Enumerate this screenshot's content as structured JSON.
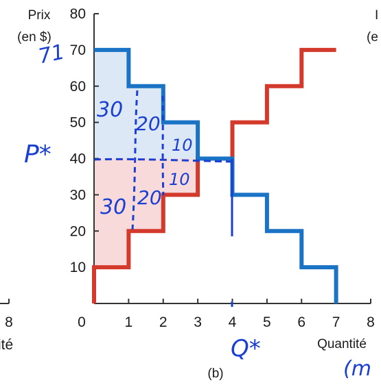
{
  "chart_data": {
    "type": "line",
    "panel_label": "(b)",
    "ylabel_line1": "Prix",
    "ylabel_line2": "(en $)",
    "xlabel": "Quantité",
    "xlim": [
      0,
      8
    ],
    "ylim": [
      0,
      80
    ],
    "xticks": [
      "0",
      "1",
      "2",
      "3",
      "4",
      "5",
      "6",
      "7",
      "8"
    ],
    "yticks": [
      "10",
      "20",
      "30",
      "40",
      "50",
      "60",
      "70",
      "80"
    ],
    "series": [
      {
        "role": "demand",
        "color": "#1a73c4",
        "step_points": [
          [
            0,
            70
          ],
          [
            1,
            70
          ],
          [
            1,
            60
          ],
          [
            2,
            60
          ],
          [
            2,
            50
          ],
          [
            3,
            50
          ],
          [
            3,
            40
          ],
          [
            4,
            40
          ],
          [
            4,
            30
          ],
          [
            5,
            30
          ],
          [
            5,
            20
          ],
          [
            6,
            20
          ],
          [
            6,
            10
          ],
          [
            7,
            10
          ],
          [
            7,
            0
          ]
        ]
      },
      {
        "role": "supply",
        "color": "#d33a2c",
        "step_points": [
          [
            0,
            0
          ],
          [
            0,
            10
          ],
          [
            1,
            10
          ],
          [
            1,
            20
          ],
          [
            2,
            20
          ],
          [
            2,
            30
          ],
          [
            3,
            30
          ],
          [
            3,
            40
          ],
          [
            4,
            40
          ],
          [
            4,
            50
          ],
          [
            5,
            50
          ],
          [
            5,
            60
          ],
          [
            6,
            60
          ],
          [
            6,
            70
          ],
          [
            7,
            70
          ]
        ]
      }
    ],
    "consumer_surplus_region": {
      "color": "#dce8f5",
      "points": [
        [
          0,
          40
        ],
        [
          0,
          70
        ],
        [
          1,
          70
        ],
        [
          1,
          60
        ],
        [
          2,
          60
        ],
        [
          2,
          50
        ],
        [
          3,
          50
        ],
        [
          3,
          40
        ]
      ]
    },
    "producer_surplus_region": {
      "color": "#f8dada",
      "points": [
        [
          0,
          40
        ],
        [
          0,
          10
        ],
        [
          1,
          10
        ],
        [
          1,
          20
        ],
        [
          2,
          20
        ],
        [
          2,
          30
        ],
        [
          3,
          30
        ],
        [
          3,
          40
        ]
      ]
    },
    "equilibrium_price": 40,
    "equilibrium_quantity": 4,
    "left_panel_fragment": {
      "tick": "8",
      "label": "ité",
      "right_label_fragment": "(e",
      "top_fragment": "I"
    },
    "annotations": {
      "p_star": "P*",
      "q_star": "Q*",
      "units_fragment": "(m",
      "cs_values": [
        "30",
        "20",
        "10"
      ],
      "ps_values": [
        "30",
        "20",
        "10"
      ],
      "price_scribble": "71"
    }
  }
}
